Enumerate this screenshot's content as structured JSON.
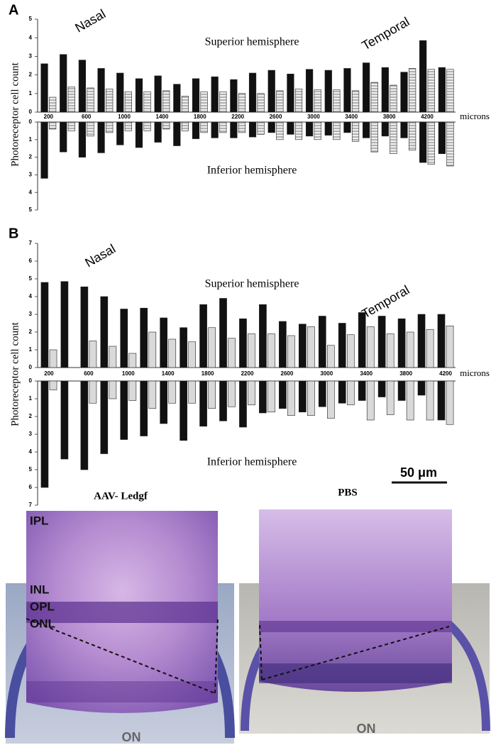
{
  "chart_data": [
    {
      "type": "bar",
      "panel_label": "A",
      "y_label": "Photoreceptor cell count",
      "x_label": "microns",
      "annotations": [
        "Nasal",
        "Temporal",
        "Superior hemisphere",
        "Inferior hemisphere"
      ],
      "categories": [
        "200",
        null,
        "600",
        null,
        "1000",
        null,
        "1400",
        null,
        "1800",
        null,
        "2200",
        null,
        "2600",
        null,
        "3000",
        null,
        "3400",
        null,
        "3800",
        null,
        "4200",
        null
      ],
      "ylim": [
        -5,
        5
      ],
      "yticks": [
        5,
        4,
        3,
        2,
        1,
        0,
        0,
        {
          "value": -1,
          "label": "1"
        },
        {
          "value": -2,
          "label": "2"
        },
        {
          "value": -3,
          "label": "3"
        },
        {
          "value": -4,
          "label": "4"
        },
        {
          "value": -5,
          "label": "5"
        }
      ],
      "series": [
        {
          "color": "#111111",
          "values": [
            2.6,
            3.1,
            2.8,
            2.35,
            2.1,
            1.8,
            1.95,
            1.5,
            1.8,
            1.9,
            1.75,
            2.1,
            2.25,
            2.05,
            2.3,
            2.25,
            2.35,
            2.65,
            2.4,
            2.15,
            3.85,
            2.4
          ]
        },
        {
          "color": "#cfcfcf",
          "hatch": true,
          "values": [
            0.8,
            1.35,
            1.3,
            1.25,
            1.1,
            1.1,
            1.15,
            0.85,
            1.1,
            1.1,
            1.0,
            1.0,
            1.15,
            1.25,
            1.2,
            1.2,
            1.15,
            1.6,
            1.45,
            2.35,
            2.3,
            2.3
          ]
        },
        {
          "color": "#111111",
          "values": [
            -3.2,
            -1.7,
            -2.0,
            -1.75,
            -1.3,
            -1.45,
            -1.15,
            -1.35,
            -0.95,
            -0.9,
            -0.9,
            -0.85,
            -0.6,
            -0.7,
            -0.8,
            -0.75,
            -0.6,
            -0.9,
            -0.8,
            -0.9,
            -2.3,
            -1.8
          ]
        },
        {
          "color": "#cfcfcf",
          "hatch": true,
          "values": [
            -0.4,
            -0.5,
            -0.8,
            -0.6,
            -0.5,
            -0.5,
            -0.4,
            -0.5,
            -0.6,
            -0.6,
            -0.6,
            -0.7,
            -1.0,
            -1.0,
            -1.0,
            -1.0,
            -1.1,
            -1.7,
            -1.8,
            -1.6,
            -2.4,
            -2.5
          ]
        }
      ]
    },
    {
      "type": "bar",
      "panel_label": "B",
      "y_label": "Photoreceptor cell count",
      "x_label": "microns",
      "annotations": [
        "Nasal",
        "Temporal",
        "Superior hemisphere",
        "Inferior hemisphere"
      ],
      "categories": [
        "200",
        null,
        "600",
        null,
        "1000",
        null,
        "1400",
        null,
        "1800",
        null,
        "2200",
        null,
        "2600",
        null,
        "3000",
        null,
        "3400",
        null,
        "3800",
        null,
        "4200"
      ],
      "ylim": [
        -7,
        7
      ],
      "yticks": [
        7,
        6,
        5,
        4,
        3,
        2,
        1,
        0,
        0,
        {
          "value": -1,
          "label": "1"
        },
        {
          "value": -2,
          "label": "2"
        },
        {
          "value": -3,
          "label": "3"
        },
        {
          "value": -4,
          "label": "4"
        },
        {
          "value": -5,
          "label": "5"
        },
        {
          "value": -6,
          "label": "6"
        },
        {
          "value": -7,
          "label": "7"
        }
      ],
      "series": [
        {
          "color": "#111111",
          "values": [
            4.8,
            4.85,
            4.55,
            4.0,
            3.3,
            3.35,
            2.8,
            2.25,
            3.55,
            3.9,
            2.75,
            3.55,
            2.6,
            2.45,
            2.9,
            2.5,
            3.1,
            2.9,
            2.75,
            3.0,
            3.0
          ]
        },
        {
          "color": "#d9d9d9",
          "values": [
            1.0,
            0,
            1.5,
            1.2,
            0.8,
            2.0,
            1.6,
            1.45,
            2.25,
            1.65,
            1.9,
            1.9,
            1.8,
            2.3,
            1.25,
            1.85,
            2.3,
            1.9,
            2.0,
            2.15,
            2.35
          ]
        },
        {
          "color": "#111111",
          "values": [
            -6.0,
            -4.4,
            -5.0,
            -4.1,
            -3.3,
            -3.1,
            -2.4,
            -3.35,
            -2.55,
            -2.25,
            -2.6,
            -1.8,
            -1.55,
            -1.75,
            -1.45,
            -1.25,
            -1.1,
            -0.9,
            -1.1,
            -0.8,
            -2.2
          ]
        },
        {
          "color": "#d9d9d9",
          "values": [
            -0.5,
            0,
            -1.25,
            -1.0,
            -1.1,
            -1.55,
            -1.25,
            -1.25,
            -1.55,
            -1.45,
            -1.35,
            -1.75,
            -1.95,
            -1.95,
            -2.1,
            -1.35,
            -2.2,
            -1.9,
            -2.2,
            -2.2,
            -2.45
          ]
        }
      ]
    }
  ],
  "micrograph": {
    "panels": [
      {
        "title": "AAV- Ledgf",
        "labels": [
          "IPL",
          "INL",
          "OPL",
          "ONL"
        ],
        "nerve": "ON"
      },
      {
        "title": "PBS",
        "scale_bar": "50 μm",
        "nerve": "ON"
      }
    ]
  }
}
